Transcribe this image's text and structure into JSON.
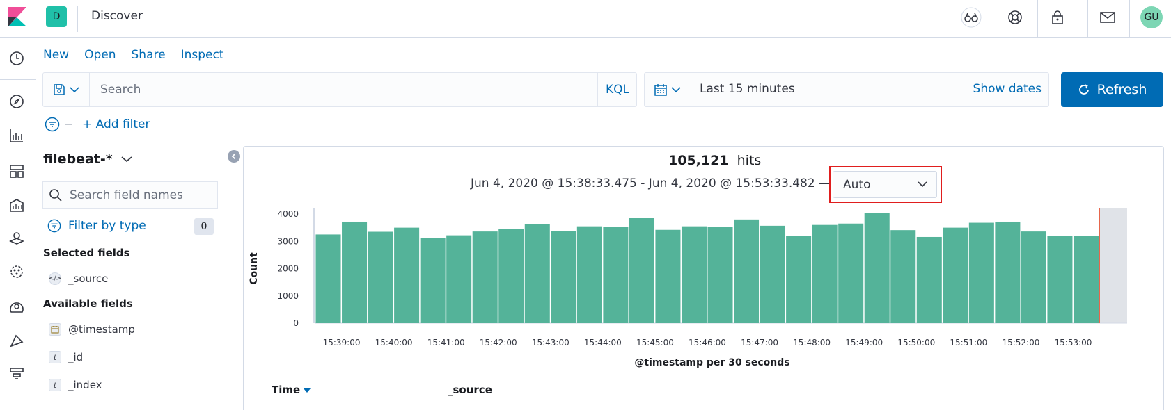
{
  "header": {
    "space_initial": "D",
    "app_title": "Discover",
    "user_initials": "GU",
    "icons": [
      "help-glasses-icon",
      "help-lifebuoy-icon",
      "lock-icon",
      "mail-icon"
    ]
  },
  "left_rail": {
    "icons": [
      "recent-clock-icon",
      "discover-compass-icon",
      "visualize-icon",
      "dashboard-icon",
      "canvas-icon",
      "maps-icon",
      "ml-icon",
      "uptime-icon",
      "logs-icon",
      "apm-icon"
    ]
  },
  "top_menu": {
    "new": "New",
    "open": "Open",
    "share": "Share",
    "inspect": "Inspect"
  },
  "query": {
    "placeholder": "Search",
    "language": "KQL"
  },
  "time": {
    "range_label": "Last 15 minutes",
    "show_dates": "Show dates",
    "refresh": "Refresh"
  },
  "filters": {
    "add_filter": "+ Add filter"
  },
  "sidebar": {
    "index_pattern": "filebeat-*",
    "search_placeholder": "Search field names",
    "filter_by_type": "Filter by type",
    "filter_count": "0",
    "selected_title": "Selected fields",
    "selected_fields": [
      {
        "type": "</>",
        "name": "_source"
      }
    ],
    "available_title": "Available fields",
    "available_fields": [
      {
        "type": "cal",
        "name": "@timestamp"
      },
      {
        "type": "t",
        "name": "_id"
      },
      {
        "type": "t",
        "name": "_index"
      }
    ]
  },
  "results": {
    "hits_count": "105,121",
    "hits_label": "hits",
    "date_range": "Jun 4, 2020 @ 15:38:33.475 - Jun 4, 2020 @ 15:53:33.482 —",
    "interval": "Auto"
  },
  "table": {
    "time_header": "Time",
    "source_header": "_source"
  },
  "colors": {
    "accent": "#006bb4",
    "bar": "#54b399",
    "now_line": "#e7664c"
  },
  "chart_data": {
    "type": "bar",
    "xlabel": "@timestamp per 30 seconds",
    "ylabel": "Count",
    "ylim": [
      0,
      4000
    ],
    "yticks": [
      0,
      1000,
      2000,
      3000,
      4000
    ],
    "xtick_labels": [
      "15:39:00",
      "15:40:00",
      "15:41:00",
      "15:42:00",
      "15:43:00",
      "15:44:00",
      "15:45:00",
      "15:46:00",
      "15:47:00",
      "15:48:00",
      "15:49:00",
      "15:50:00",
      "15:51:00",
      "15:52:00",
      "15:53:00"
    ],
    "values": [
      3250,
      3720,
      3350,
      3500,
      3120,
      3220,
      3360,
      3460,
      3620,
      3380,
      3550,
      3520,
      3850,
      3420,
      3550,
      3530,
      3800,
      3570,
      3200,
      3600,
      3650,
      4050,
      3410,
      3160,
      3500,
      3680,
      3720,
      3360,
      3190,
      3210
    ]
  }
}
